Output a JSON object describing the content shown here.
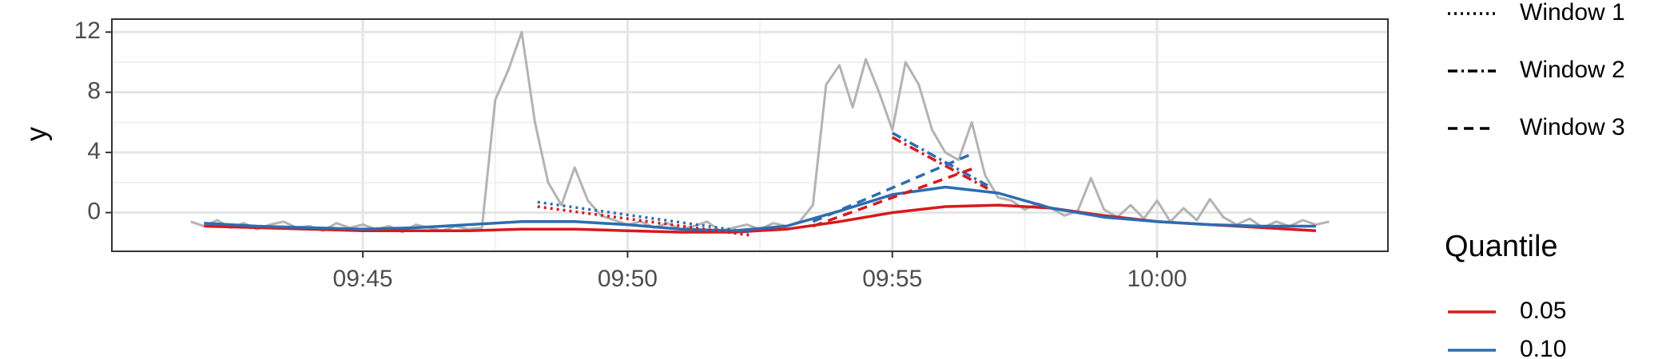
{
  "chart_data": {
    "type": "line",
    "ylabel": "y",
    "xlim": [
      580.26,
      604.36
    ],
    "xticks": [
      {
        "value": 585,
        "label": "09:45"
      },
      {
        "value": 590,
        "label": "09:50"
      },
      {
        "value": 595,
        "label": "09:55"
      },
      {
        "value": 600,
        "label": "10:00"
      }
    ],
    "ylim": [
      -2.57,
      12.86
    ],
    "yticks": [
      0,
      4,
      8,
      12
    ],
    "grid": true,
    "raw": {
      "color": "#b3b3b3",
      "x": [
        581.75,
        582,
        582.25,
        582.5,
        582.75,
        583,
        583.25,
        583.5,
        583.75,
        584,
        584.25,
        584.5,
        584.75,
        585,
        585.25,
        585.5,
        585.75,
        586,
        586.25,
        586.5,
        586.75,
        587,
        587.25,
        587.5,
        587.75,
        588,
        588.25,
        588.5,
        588.75,
        589,
        589.25,
        589.5,
        589.75,
        590,
        590.25,
        590.5,
        590.75,
        591,
        591.25,
        591.5,
        591.75,
        592,
        592.25,
        592.5,
        592.75,
        593,
        593.25,
        593.5,
        593.75,
        594,
        594.25,
        594.5,
        594.75,
        595,
        595.25,
        595.5,
        595.75,
        596,
        596.25,
        596.5,
        596.75,
        597,
        597.25,
        597.5,
        597.75,
        598,
        598.25,
        598.5,
        598.75,
        599,
        599.25,
        599.5,
        599.75,
        600,
        600.25,
        600.5,
        600.75,
        601,
        601.25,
        601.5,
        601.75,
        602,
        602.25,
        602.5,
        602.75,
        603,
        603.25
      ],
      "values": [
        -0.6,
        -0.9,
        -0.5,
        -1.0,
        -0.7,
        -1.1,
        -0.8,
        -0.6,
        -1.0,
        -0.9,
        -1.2,
        -0.7,
        -1.0,
        -0.8,
        -1.1,
        -0.9,
        -1.3,
        -0.8,
        -1.0,
        -1.2,
        -0.9,
        -1.1,
        -1.0,
        7.5,
        9.5,
        12.0,
        6.0,
        2.0,
        0.5,
        3.0,
        0.8,
        -0.2,
        -0.5,
        -0.8,
        -0.6,
        -1.0,
        -0.7,
        -1.1,
        -0.9,
        -0.6,
        -1.2,
        -1.0,
        -0.8,
        -1.1,
        -0.7,
        -0.9,
        -0.6,
        0.5,
        8.5,
        9.8,
        7.0,
        10.2,
        8.0,
        5.5,
        10.0,
        8.5,
        5.5,
        4.0,
        3.5,
        6.0,
        2.5,
        1.0,
        0.8,
        0.2,
        0.6,
        0.3,
        -0.2,
        0.1,
        2.3,
        0.2,
        -0.3,
        0.5,
        -0.4,
        0.8,
        -0.6,
        0.3,
        -0.5,
        0.9,
        -0.3,
        -0.8,
        -0.4,
        -1.0,
        -0.6,
        -0.9,
        -0.5,
        -0.8,
        -0.6
      ]
    },
    "legend_title": "Quantile",
    "series": [
      {
        "name": "0.05",
        "color": "#d7191c",
        "x": [
          582,
          583,
          584,
          585,
          586,
          587,
          588,
          589,
          590,
          591,
          592,
          593,
          594,
          595,
          596,
          597,
          598,
          599,
          600,
          601,
          602,
          603
        ],
        "values": [
          -0.9,
          -1.0,
          -1.1,
          -1.2,
          -1.2,
          -1.2,
          -1.1,
          -1.1,
          -1.2,
          -1.3,
          -1.3,
          -1.1,
          -0.6,
          0.0,
          0.4,
          0.5,
          0.3,
          -0.2,
          -0.6,
          -0.8,
          -1.0,
          -1.2
        ]
      },
      {
        "name": "0.10",
        "color": "#2c6db0",
        "x": [
          582,
          583,
          584,
          585,
          586,
          587,
          588,
          589,
          590,
          591,
          592,
          593,
          594,
          595,
          596,
          597,
          598,
          599,
          600,
          601,
          602,
          603
        ],
        "values": [
          -0.7,
          -0.9,
          -1.0,
          -1.1,
          -1.0,
          -0.8,
          -0.6,
          -0.6,
          -0.8,
          -1.1,
          -1.2,
          -0.9,
          0.1,
          1.2,
          1.7,
          1.3,
          0.3,
          -0.3,
          -0.6,
          -0.8,
          -0.9,
          -0.9
        ]
      }
    ],
    "windows": [
      {
        "name": "Window 1",
        "dash": "3 5",
        "lines": [
          {
            "x": [
              588.3,
              592.3
            ],
            "values": [
              0.4,
              -1.5
            ]
          },
          {
            "x": [
              588.3,
              592.3
            ],
            "values": [
              0.7,
              -1.3
            ]
          }
        ]
      },
      {
        "name": "Window 2",
        "dash": "12 5 3 5",
        "lines": [
          {
            "x": [
              595.0,
              596.8
            ],
            "values": [
              5.0,
              1.6
            ]
          },
          {
            "x": [
              595.0,
              596.8
            ],
            "values": [
              5.3,
              1.8
            ]
          }
        ]
      },
      {
        "name": "Window 3",
        "dash": "12 8",
        "lines": [
          {
            "x": [
              593.5,
              596.5
            ],
            "values": [
              -0.9,
              2.9
            ]
          },
          {
            "x": [
              593.5,
              596.5
            ],
            "values": [
              -0.6,
              3.9
            ]
          }
        ]
      }
    ]
  }
}
